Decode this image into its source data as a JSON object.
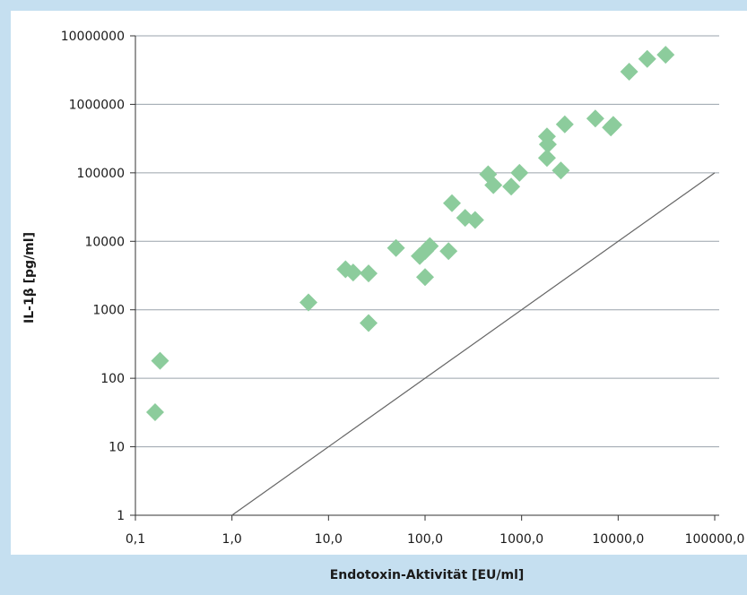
{
  "chart_data": {
    "type": "scatter",
    "xscale": "log",
    "yscale": "log",
    "xlim": [
      0.1,
      100000
    ],
    "ylim": [
      1,
      10000000
    ],
    "xlabel": "Endotoxin-Aktivität [EU/ml]",
    "ylabel": "IL-1β [pg/ml]",
    "x_ticks": [
      "0,1",
      "1,0",
      "10,0",
      "100,0",
      "1000,0",
      "10000,0",
      "100000,0"
    ],
    "y_ticks": [
      "1",
      "10",
      "100",
      "1000",
      "10000",
      "100000",
      "1000000",
      "10000000"
    ],
    "grid": "horizontal",
    "reference_line": "y = x",
    "marker_color": "#8ccc9c",
    "points": [
      {
        "x": 0.16,
        "y": 32
      },
      {
        "x": 0.18,
        "y": 180
      },
      {
        "x": 6.2,
        "y": 1280
      },
      {
        "x": 15,
        "y": 3900
      },
      {
        "x": 18,
        "y": 3500
      },
      {
        "x": 26,
        "y": 3400
      },
      {
        "x": 26,
        "y": 640
      },
      {
        "x": 50,
        "y": 8000
      },
      {
        "x": 88,
        "y": 6100
      },
      {
        "x": 100,
        "y": 7200
      },
      {
        "x": 112,
        "y": 8500
      },
      {
        "x": 100,
        "y": 3000
      },
      {
        "x": 175,
        "y": 7200
      },
      {
        "x": 190,
        "y": 36000
      },
      {
        "x": 260,
        "y": 22000
      },
      {
        "x": 330,
        "y": 20500
      },
      {
        "x": 450,
        "y": 95000
      },
      {
        "x": 510,
        "y": 66000
      },
      {
        "x": 780,
        "y": 63000
      },
      {
        "x": 950,
        "y": 100000
      },
      {
        "x": 1830,
        "y": 340000
      },
      {
        "x": 1870,
        "y": 260000
      },
      {
        "x": 1830,
        "y": 165000
      },
      {
        "x": 2550,
        "y": 108000
      },
      {
        "x": 2800,
        "y": 510000
      },
      {
        "x": 5800,
        "y": 620000
      },
      {
        "x": 8400,
        "y": 460000
      },
      {
        "x": 8900,
        "y": 500000
      },
      {
        "x": 13000,
        "y": 3000000
      },
      {
        "x": 20000,
        "y": 4600000
      },
      {
        "x": 31000,
        "y": 5300000
      }
    ]
  },
  "colors": {
    "frame_background": "#c5dff0",
    "plot_background": "#ffffff",
    "gridline": "#9aa3ab",
    "reference_line": "#666666",
    "marker": "#8ccc9c"
  }
}
